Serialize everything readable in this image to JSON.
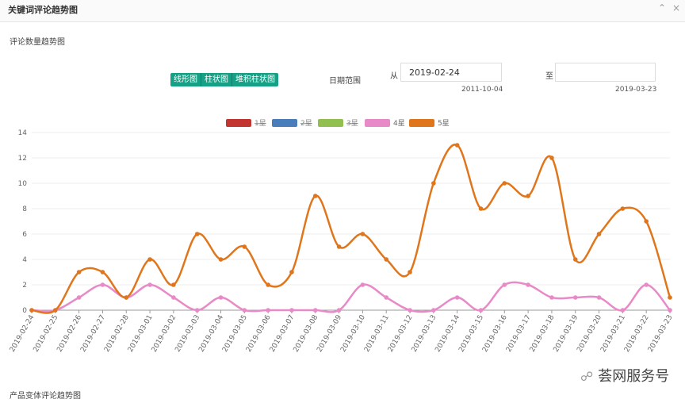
{
  "header": {
    "title": "关键词评论趋势图",
    "section": "评论数量趋势图"
  },
  "controls": {
    "buttons": [
      "线形图",
      "柱状图",
      "堆积柱状图"
    ],
    "date_range_label": "日期范围",
    "from_label": "从",
    "from_value": "2019-02-24",
    "from_min": "2011-10-04",
    "to_label": "至",
    "to_max": "2019-03-23"
  },
  "chart_data": {
    "type": "line",
    "x": [
      "2019-02-24",
      "2019-02-25",
      "2019-02-26",
      "2019-02-27",
      "2019-02-28",
      "2019-03-01",
      "2019-03-02",
      "2019-03-03",
      "2019-03-04",
      "2019-03-05",
      "2019-03-06",
      "2019-03-07",
      "2019-03-08",
      "2019-03-09",
      "2019-03-10",
      "2019-03-11",
      "2019-03-12",
      "2019-03-13",
      "2019-03-14",
      "2019-03-15",
      "2019-03-16",
      "2019-03-17",
      "2019-03-18",
      "2019-03-19",
      "2019-03-20",
      "2019-03-21",
      "2019-03-22",
      "2019-03-23"
    ],
    "series": [
      {
        "name": "1星",
        "color": "#c23531",
        "hidden": true
      },
      {
        "name": "2星",
        "color": "#4a7ebb",
        "hidden": true
      },
      {
        "name": "3星",
        "color": "#91c051",
        "hidden": true
      },
      {
        "name": "4星",
        "color": "#e88ac8",
        "values": [
          0,
          0,
          1,
          2,
          1,
          2,
          1,
          0,
          1,
          0,
          0,
          0,
          0,
          0,
          2,
          1,
          0,
          0,
          1,
          0,
          2,
          2,
          1,
          1,
          1,
          0,
          2,
          0
        ]
      },
      {
        "name": "5星",
        "color": "#e0761c",
        "values": [
          0,
          0,
          3,
          3,
          1,
          4,
          2,
          6,
          4,
          5,
          2,
          3,
          9,
          5,
          6,
          4,
          3,
          10,
          13,
          8,
          10,
          9,
          12,
          4,
          6,
          8,
          7,
          1
        ]
      }
    ],
    "ylim": [
      0,
      14
    ],
    "yticks": [
      0,
      2,
      4,
      6,
      8,
      10,
      12,
      14
    ],
    "grid": true,
    "smooth": true,
    "legend": "top"
  },
  "footer": {
    "section": "产品变体评论趋势图"
  },
  "watermark": "荟网服务号"
}
